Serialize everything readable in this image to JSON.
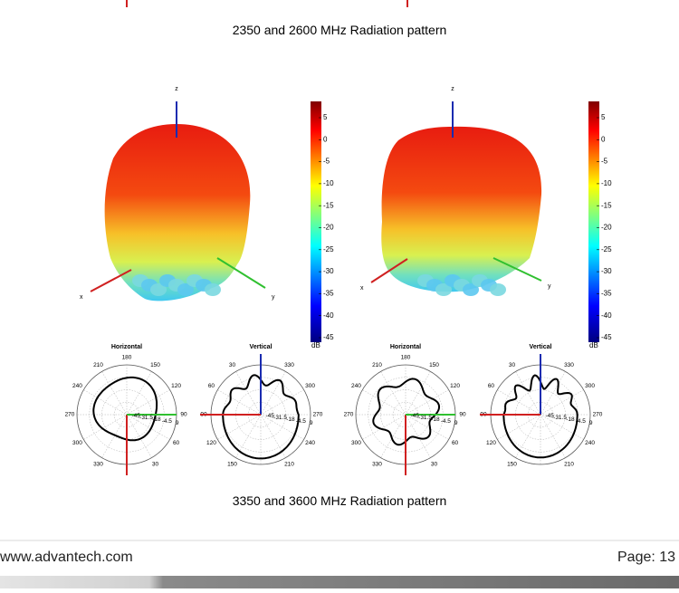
{
  "caption_top": "2350 and 2600 MHz Radiation pattern",
  "figures": [
    {
      "axis_labels": {
        "z": "z",
        "x": "x",
        "y": "y"
      },
      "colorbar": {
        "ticks": [
          5,
          0,
          -5,
          -10,
          -15,
          -20,
          -25,
          -30,
          -35,
          -40,
          -45
        ],
        "unit": "dB"
      }
    },
    {
      "axis_labels": {
        "z": "z",
        "x": "x",
        "y": "y"
      },
      "colorbar": {
        "ticks": [
          5,
          0,
          -5,
          -10,
          -15,
          -20,
          -25,
          -30,
          -35,
          -40,
          -45
        ],
        "unit": "dB"
      }
    }
  ],
  "polar_plots": [
    {
      "title": "Horizontal",
      "angles": [
        180,
        150,
        120,
        90,
        60,
        30,
        null,
        330,
        300,
        270,
        240,
        210
      ],
      "radii": [
        -45,
        -31.5,
        -18,
        -4.5,
        9
      ]
    },
    {
      "title": "Vertical",
      "angles": [
        null,
        330,
        300,
        270,
        240,
        210,
        null,
        150,
        120,
        90,
        60,
        30
      ],
      "radii": [
        -45,
        -31.5,
        -18,
        -4.5,
        9
      ]
    },
    {
      "title": "Horizontal",
      "angles": [
        180,
        150,
        120,
        90,
        60,
        30,
        null,
        330,
        300,
        270,
        240,
        210
      ],
      "radii": [
        -45,
        -31.5,
        -18,
        -4.5,
        9
      ]
    },
    {
      "title": "Vertical",
      "angles": [
        null,
        330,
        300,
        270,
        240,
        210,
        null,
        150,
        120,
        90,
        60,
        30
      ],
      "radii": [
        -45,
        -31.5,
        -18,
        -4.5,
        9
      ]
    }
  ],
  "caption_bottom": "3350 and 3600 MHz Radiation pattern",
  "footer": {
    "url": "www.advantech.com",
    "page": "Page: 13"
  }
}
